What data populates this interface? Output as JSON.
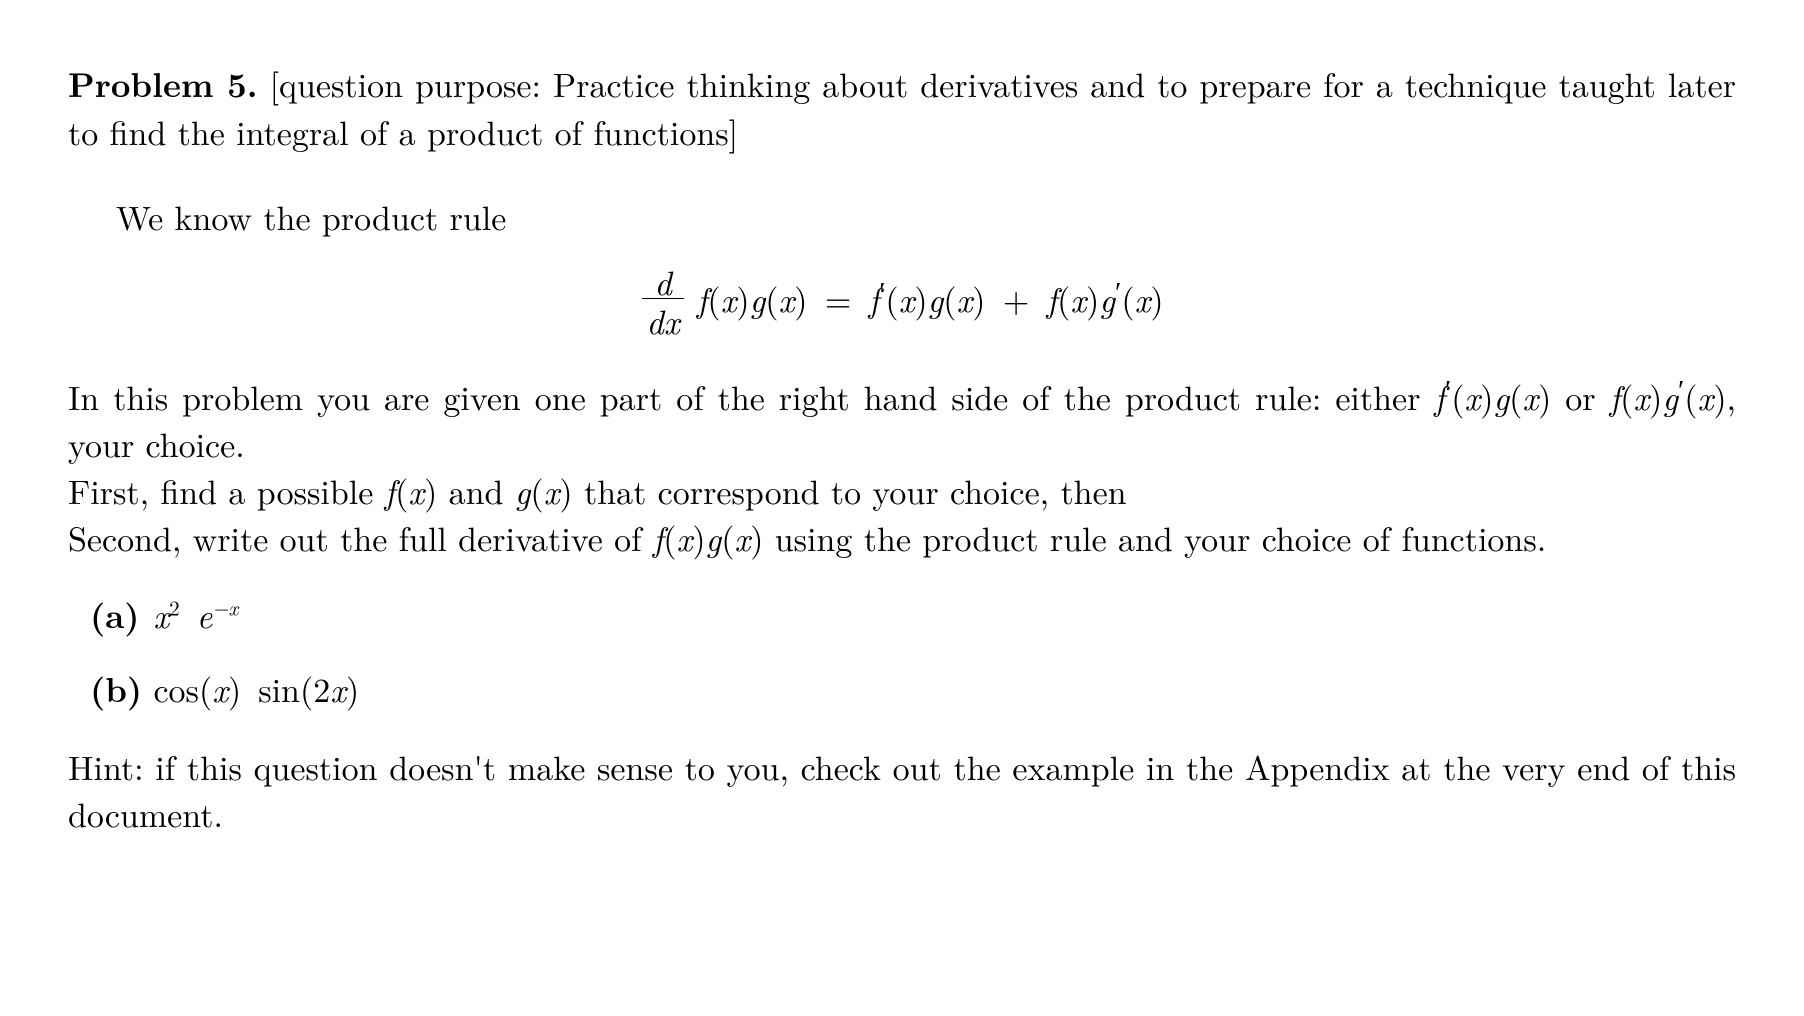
{
  "problem": {
    "label": "Problem 5.",
    "purpose_text": "[question purpose: Practice thinking about derivatives and to prepare for a technique taught later to find the integral of a product of functions]"
  },
  "intro": "We know the product rule",
  "formula": {
    "lhs_frac_num": "d",
    "lhs_frac_den_d": "d",
    "lhs_frac_den_x": "x",
    "fx_f": "f",
    "fx_g": "g",
    "var_x": "x",
    "eq": "=",
    "plus": "+"
  },
  "body": {
    "line1_pre": "In this problem you are given one part of the right hand side of the product rule:  either ",
    "line1_math1_text_after": " or ",
    "line1_tail": ", your choice.",
    "line2_pre": "First, find a possible ",
    "line2_mid": " and ",
    "line2_tail": " that correspond to your choice, then",
    "line3_pre": "Second, write out the full derivative of ",
    "line3_tail": " using the product rule and your choice of functions."
  },
  "items": {
    "a": {
      "marker": "(a)",
      "x": "x",
      "sq": "2",
      "e": "e",
      "neg_x": "−x"
    },
    "b": {
      "marker": "(b)",
      "cos": "cos",
      "sin": "sin",
      "x": "x",
      "two_x": "2x"
    }
  },
  "hint": "Hint: if this question doesn't make sense to you, check out the example in the Appendix at the very end of this document.",
  "style": {
    "font_size_pt": 25,
    "text_color": "#000000",
    "background_color": "#ffffff"
  }
}
